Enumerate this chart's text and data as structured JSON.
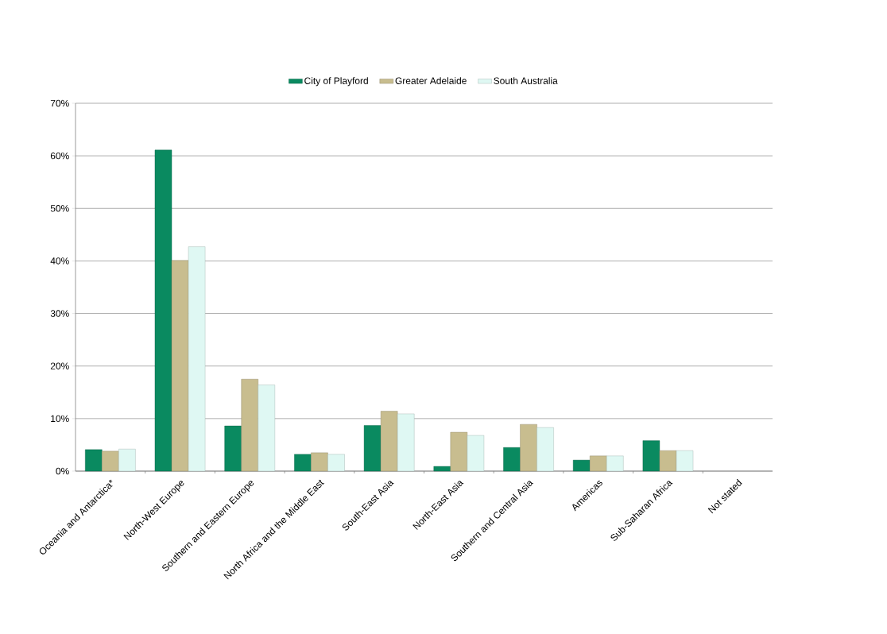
{
  "chart_data": {
    "type": "bar",
    "categories": [
      "Oceania and Antarctica*",
      "North-West Europe",
      "Southern and Eastern Europe",
      "North Africa and the Middle East",
      "South-East Asia",
      "North-East Asia",
      "Southern and Central Asia",
      "Americas",
      "Sub-Saharan Africa",
      "Not stated"
    ],
    "series": [
      {
        "name": "City of Playford",
        "color": "#0a8a60",
        "values": [
          4.1,
          61.1,
          8.6,
          3.2,
          8.7,
          0.9,
          4.5,
          2.1,
          5.8,
          null
        ]
      },
      {
        "name": "Greater Adelaide",
        "color": "#c8bd8f",
        "values": [
          3.8,
          40.1,
          17.5,
          3.5,
          11.4,
          7.4,
          8.9,
          2.9,
          3.9,
          null
        ]
      },
      {
        "name": "South Australia",
        "color": "#dff8f3",
        "values": [
          4.2,
          42.7,
          16.4,
          3.2,
          10.9,
          6.8,
          8.3,
          2.9,
          3.9,
          null
        ]
      }
    ],
    "ylim": [
      0,
      70
    ],
    "yticks": [
      {
        "value": 0,
        "label": "0%"
      },
      {
        "value": 10,
        "label": "10%"
      },
      {
        "value": 20,
        "label": "20%"
      },
      {
        "value": 30,
        "label": "30%"
      },
      {
        "value": 40,
        "label": "40%"
      },
      {
        "value": 50,
        "label": "50%"
      },
      {
        "value": 60,
        "label": "60%"
      },
      {
        "value": 70,
        "label": "70%"
      }
    ],
    "grid": "y",
    "legend": "top"
  }
}
